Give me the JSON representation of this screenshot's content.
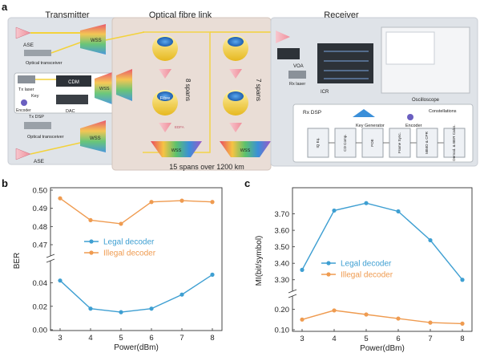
{
  "figure": {
    "panel_a": {
      "label": "a",
      "sections": {
        "transmitter": "Transmitter",
        "link": "Optical fibre link",
        "receiver": "Receiver"
      },
      "tx_labels": {
        "ase_top": "ASE",
        "wss_top": "WSS",
        "optical_transceiver_top": "Optical transceiver",
        "tx_laser": "Tx laser",
        "cdm": "CDM",
        "key": "Key",
        "encoder": "Encoder",
        "dac": "DAC",
        "tx_dsp": "Tx DSP",
        "wss_mid": "WSS",
        "optical_transceiver_bottom": "Optical transceiver",
        "wss_bottom": "WSS",
        "ase_bottom": "ASE"
      },
      "link_labels": {
        "spans_left": "8 spans",
        "spans_right": "7 spans",
        "fibre": "Fibre",
        "edfa": "EDFA",
        "wss_left": "WSS",
        "wss_right": "WSS",
        "summary": "15 spans over 1200 km"
      },
      "rx_labels": {
        "voa": "VOA",
        "rx_laser": "Rx laser",
        "icr": "ICR",
        "oscilloscope": "Oscilloscope",
        "rx_dsp": "Rx DSP",
        "key_generator": "Key Generator",
        "encoder": "Encoder",
        "constellations": "Constellations",
        "blocks": [
          "IQ Eq.",
          "CD Comp.",
          "FOE",
          "Frame Sync.",
          "MIMO & CPR",
          "Demod. & BER Calcs."
        ]
      }
    },
    "colors": {
      "legal": "#3e9fd2",
      "illegal": "#ef9b50"
    },
    "panel_b_label": "b",
    "panel_c_label": "c"
  },
  "chart_data": [
    {
      "type": "line",
      "panel": "b",
      "xlabel": "Power(dBm)",
      "ylabel": "BER",
      "x": [
        3,
        4,
        5,
        6,
        7,
        8
      ],
      "broken_axis": true,
      "y_segments": [
        {
          "range": [
            0.0,
            0.05
          ],
          "ticks": [
            "0.00",
            "0.02",
            "0.04"
          ]
        },
        {
          "range": [
            0.47,
            0.5
          ],
          "ticks": [
            "0.47",
            "0.48",
            "0.49",
            "0.50"
          ]
        }
      ],
      "series": [
        {
          "name": "Legal decoder",
          "values": [
            0.042,
            0.018,
            0.015,
            0.018,
            0.03,
            0.047
          ]
        },
        {
          "name": "Illegal decoder",
          "values": [
            0.4955,
            0.4835,
            0.4815,
            0.4935,
            0.4942,
            0.4935
          ]
        }
      ],
      "legend": "center"
    },
    {
      "type": "line",
      "panel": "c",
      "xlabel": "Power(dBm)",
      "ylabel": "MI(bit/symbol)",
      "x": [
        3,
        4,
        5,
        6,
        7,
        8
      ],
      "broken_axis": true,
      "y_segments": [
        {
          "range": [
            0.1,
            0.25
          ],
          "ticks": [
            "0.10",
            "0.20"
          ]
        },
        {
          "range": [
            3.25,
            3.8
          ],
          "ticks": [
            "3.30",
            "3.40",
            "3.50",
            "3.60",
            "3.70"
          ]
        }
      ],
      "series": [
        {
          "name": "Legal decoder",
          "values": [
            3.36,
            3.72,
            3.765,
            3.715,
            3.54,
            3.3
          ]
        },
        {
          "name": "Illegal decoder",
          "values": [
            0.15,
            0.195,
            0.175,
            0.155,
            0.135,
            0.13
          ]
        }
      ],
      "legend": "center"
    }
  ]
}
